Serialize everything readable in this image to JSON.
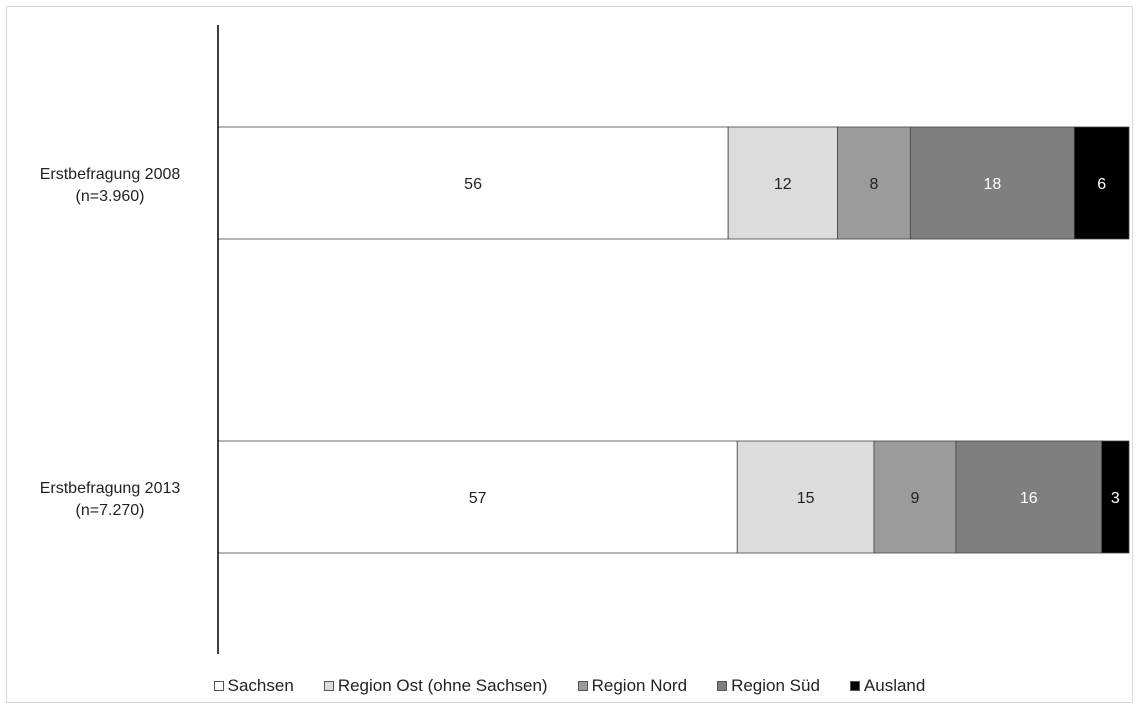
{
  "chart_data": {
    "type": "bar",
    "orientation": "horizontal",
    "stacked": true,
    "categories": [
      "Erstbefragung 2008",
      "Erstbefragung 2013"
    ],
    "category_sublabels": [
      "(n=3.960)",
      "(n=7.270)"
    ],
    "series": [
      {
        "name": "Sachsen",
        "values": [
          56,
          57
        ],
        "color": "#ffffff",
        "label_color": "#222222"
      },
      {
        "name": "Region Ost (ohne Sachsen)",
        "values": [
          12,
          15
        ],
        "color": "#dcdcdc",
        "label_color": "#222222"
      },
      {
        "name": "Region Nord",
        "values": [
          8,
          9
        ],
        "color": "#9b9b9b",
        "label_color": "#222222"
      },
      {
        "name": "Region Süd",
        "values": [
          18,
          16
        ],
        "color": "#7f7f7f",
        "label_color": "#ffffff"
      },
      {
        "name": "Ausland",
        "values": [
          6,
          3
        ],
        "color": "#000000",
        "label_color": "#ffffff"
      }
    ],
    "xlim": [
      0,
      100
    ],
    "legend_position": "bottom",
    "grid": false
  }
}
